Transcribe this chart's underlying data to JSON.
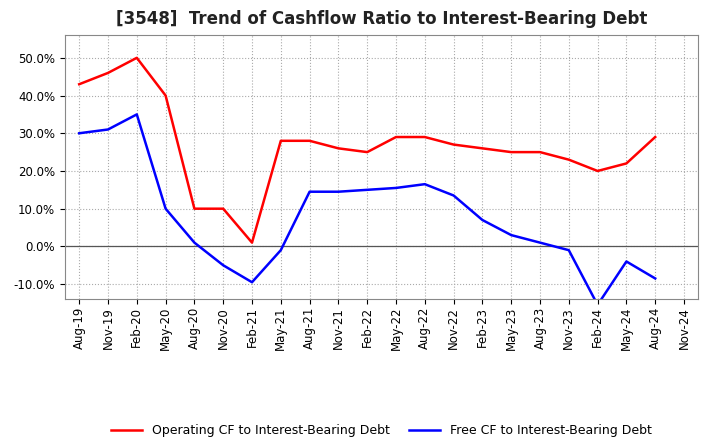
{
  "title": "[3548]  Trend of Cashflow Ratio to Interest-Bearing Debt",
  "x_labels": [
    "Aug-19",
    "Nov-19",
    "Feb-20",
    "May-20",
    "Aug-20",
    "Nov-20",
    "Feb-21",
    "May-21",
    "Aug-21",
    "Nov-21",
    "Feb-22",
    "May-22",
    "Aug-22",
    "Nov-22",
    "Feb-23",
    "May-23",
    "Aug-23",
    "Nov-23",
    "Feb-24",
    "May-24",
    "Aug-24",
    "Nov-24"
  ],
  "operating_cf": [
    0.43,
    0.46,
    0.5,
    0.4,
    0.1,
    0.1,
    0.01,
    0.28,
    0.28,
    0.26,
    0.25,
    0.29,
    0.29,
    0.27,
    0.26,
    0.25,
    0.25,
    0.23,
    0.2,
    0.22,
    0.29,
    null
  ],
  "free_cf": [
    0.3,
    0.31,
    0.35,
    0.1,
    0.01,
    -0.05,
    -0.095,
    -0.01,
    0.145,
    0.145,
    0.15,
    0.155,
    0.165,
    0.135,
    0.07,
    0.03,
    0.01,
    -0.01,
    -0.155,
    -0.04,
    -0.085,
    null
  ],
  "operating_color": "#ff0000",
  "free_color": "#0000ff",
  "background_color": "#ffffff",
  "plot_bg_color": "#ffffff",
  "grid_color": "#aaaaaa",
  "ylim": [
    -0.14,
    0.56
  ],
  "yticks": [
    -0.1,
    0.0,
    0.1,
    0.2,
    0.3,
    0.4,
    0.5
  ],
  "legend_operating": "Operating CF to Interest-Bearing Debt",
  "legend_free": "Free CF to Interest-Bearing Debt",
  "linewidth": 1.8,
  "title_fontsize": 12,
  "tick_fontsize": 8.5
}
